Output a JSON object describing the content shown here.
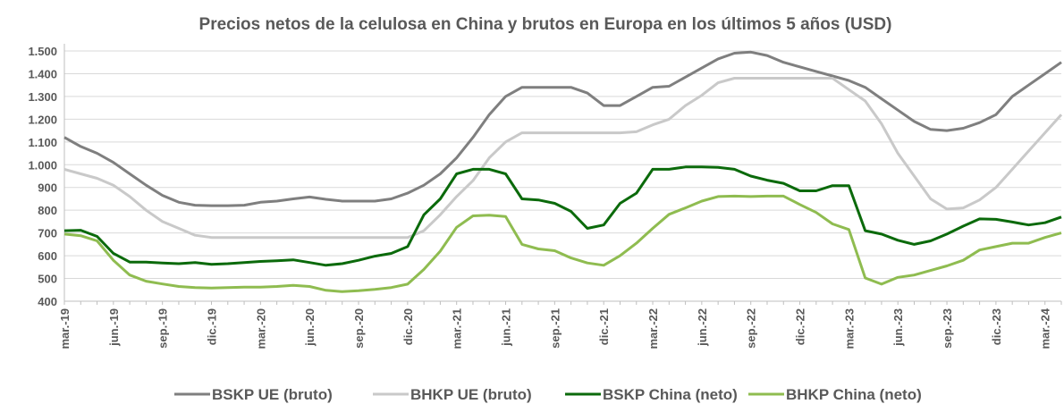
{
  "chart_data": {
    "type": "line",
    "title": "Precios netos de la celulosa en China y brutos en Europa en los últimos 5 años (USD)",
    "categories": [
      "mar.-19",
      null,
      null,
      "jun.-19",
      null,
      null,
      "sep.-19",
      null,
      null,
      "dic.-19",
      null,
      null,
      "mar.-20",
      null,
      null,
      "jun.-20",
      null,
      null,
      "sep.-20",
      null,
      null,
      "dic.-20",
      null,
      null,
      "mar.-21",
      null,
      null,
      "jun.-21",
      null,
      null,
      "sep.-21",
      null,
      null,
      "dic.-21",
      null,
      null,
      "mar.-22",
      null,
      null,
      "jun.-22",
      null,
      null,
      "sep.-22",
      null,
      null,
      "dic.-22",
      null,
      null,
      "mar.-23",
      null,
      null,
      "jun.-23",
      null,
      null,
      "sep.-23",
      null,
      null,
      "dic.-23",
      null,
      null,
      "mar.-24",
      null
    ],
    "series": [
      {
        "name": "BSKP UE (bruto)",
        "color": "#7f7f7f",
        "values": [
          1120,
          1080,
          1050,
          1010,
          960,
          910,
          865,
          835,
          822,
          820,
          820,
          822,
          835,
          840,
          850,
          858,
          848,
          840,
          840,
          840,
          850,
          875,
          910,
          960,
          1030,
          1120,
          1220,
          1300,
          1340,
          1340,
          1340,
          1340,
          1315,
          1260,
          1260,
          1300,
          1340,
          1345,
          1385,
          1425,
          1465,
          1490,
          1495,
          1480,
          1450,
          1430,
          1410,
          1390,
          1370,
          1340,
          1290,
          1240,
          1190,
          1155,
          1150,
          1160,
          1185,
          1220,
          1300,
          1350,
          1400,
          1450
        ]
      },
      {
        "name": "BHKP UE (bruto)",
        "color": "#c9c9c9",
        "values": [
          980,
          960,
          940,
          910,
          860,
          800,
          750,
          720,
          690,
          680,
          680,
          680,
          680,
          680,
          680,
          680,
          680,
          680,
          680,
          680,
          680,
          680,
          710,
          780,
          860,
          930,
          1030,
          1100,
          1140,
          1140,
          1140,
          1140,
          1140,
          1140,
          1140,
          1145,
          1175,
          1200,
          1260,
          1305,
          1360,
          1380,
          1380,
          1380,
          1380,
          1380,
          1380,
          1380,
          1330,
          1280,
          1180,
          1050,
          950,
          850,
          805,
          810,
          845,
          900,
          980,
          1060,
          1140,
          1220
        ]
      },
      {
        "name": "BSKP China (neto)",
        "color": "#0b6a0b",
        "values": [
          710,
          712,
          685,
          610,
          572,
          572,
          568,
          565,
          570,
          562,
          565,
          570,
          575,
          578,
          582,
          570,
          558,
          565,
          580,
          598,
          610,
          640,
          780,
          850,
          960,
          980,
          980,
          960,
          850,
          845,
          830,
          795,
          720,
          735,
          830,
          875,
          980,
          980,
          990,
          990,
          988,
          980,
          950,
          932,
          918,
          885,
          885,
          908,
          908,
          710,
          695,
          668,
          650,
          665,
          695,
          730,
          762,
          760,
          748,
          735,
          745,
          770
        ]
      },
      {
        "name": "BHKP China (neto)",
        "color": "#8fbc50",
        "values": [
          695,
          688,
          665,
          580,
          515,
          488,
          476,
          465,
          460,
          458,
          460,
          462,
          462,
          465,
          470,
          465,
          448,
          442,
          446,
          452,
          460,
          475,
          540,
          620,
          725,
          775,
          778,
          772,
          650,
          630,
          622,
          590,
          568,
          558,
          600,
          655,
          720,
          782,
          810,
          840,
          860,
          862,
          860,
          862,
          862,
          825,
          790,
          740,
          715,
          502,
          475,
          505,
          515,
          535,
          555,
          580,
          625,
          640,
          655,
          655,
          680,
          700
        ]
      }
    ],
    "ylim": [
      400,
      1500
    ],
    "yticks": [
      400,
      500,
      600,
      700,
      800,
      900,
      {
        "value": 1000,
        "label": "1.000"
      },
      {
        "value": 1100,
        "label": "1.100"
      },
      {
        "value": 1200,
        "label": "1.200"
      },
      {
        "value": 1300,
        "label": "1.300"
      },
      {
        "value": 1400,
        "label": "1.400"
      },
      {
        "value": 1500,
        "label": "1.500"
      }
    ],
    "grid": true
  }
}
